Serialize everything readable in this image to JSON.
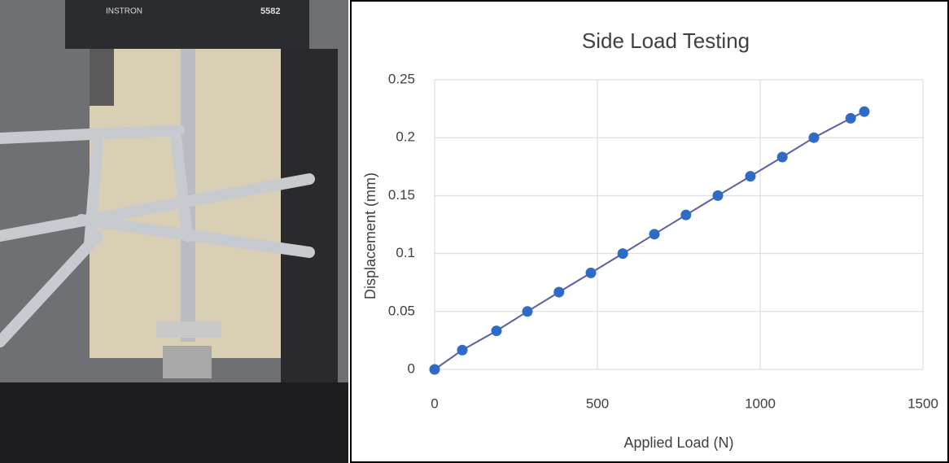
{
  "photo_text": [
    "INSTRON",
    "5582"
  ],
  "chart_data": {
    "type": "scatter",
    "title": "Side Load Testing",
    "x_label": "Applied Load (N)",
    "y_label": "Displacement (mm)",
    "x": [
      0,
      85,
      190,
      285,
      382,
      480,
      578,
      675,
      772,
      870,
      970,
      1068,
      1165,
      1278,
      1320
    ],
    "series": [
      {
        "color": "#2e6bc6",
        "line_color": "#5b5ea6",
        "values": [
          0,
          0.0167,
          0.0333,
          0.05,
          0.0667,
          0.0833,
          0.1,
          0.1167,
          0.1333,
          0.15,
          0.1667,
          0.1833,
          0.2,
          0.2167,
          0.2225
        ]
      }
    ],
    "xlim": [
      0,
      1500
    ],
    "xticks": [
      0,
      500,
      1000,
      1500
    ],
    "ylim": [
      0,
      0.25
    ],
    "yticks": [
      0,
      0.05,
      0.1,
      0.15,
      0.2,
      0.25
    ],
    "grid": true
  }
}
